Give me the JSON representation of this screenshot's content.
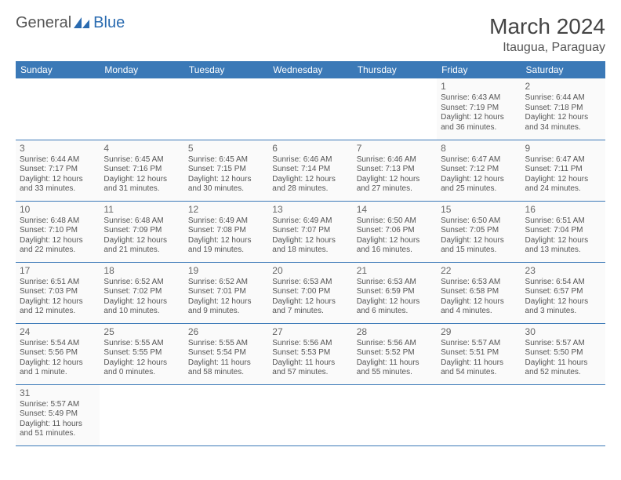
{
  "logo": {
    "text1": "General",
    "text2": "Blue"
  },
  "title": "March 2024",
  "location": "Itaugua, Paraguay",
  "colors": {
    "header_bg": "#3b79b7",
    "header_text": "#ffffff",
    "border": "#3b79b7",
    "logo_gray": "#555555",
    "logo_blue": "#2a6bb0"
  },
  "weekdays": [
    "Sunday",
    "Monday",
    "Tuesday",
    "Wednesday",
    "Thursday",
    "Friday",
    "Saturday"
  ],
  "first_weekday_index": 5,
  "days": [
    {
      "n": 1,
      "sunrise": "6:43 AM",
      "sunset": "7:19 PM",
      "daylight": "12 hours and 36 minutes."
    },
    {
      "n": 2,
      "sunrise": "6:44 AM",
      "sunset": "7:18 PM",
      "daylight": "12 hours and 34 minutes."
    },
    {
      "n": 3,
      "sunrise": "6:44 AM",
      "sunset": "7:17 PM",
      "daylight": "12 hours and 33 minutes."
    },
    {
      "n": 4,
      "sunrise": "6:45 AM",
      "sunset": "7:16 PM",
      "daylight": "12 hours and 31 minutes."
    },
    {
      "n": 5,
      "sunrise": "6:45 AM",
      "sunset": "7:15 PM",
      "daylight": "12 hours and 30 minutes."
    },
    {
      "n": 6,
      "sunrise": "6:46 AM",
      "sunset": "7:14 PM",
      "daylight": "12 hours and 28 minutes."
    },
    {
      "n": 7,
      "sunrise": "6:46 AM",
      "sunset": "7:13 PM",
      "daylight": "12 hours and 27 minutes."
    },
    {
      "n": 8,
      "sunrise": "6:47 AM",
      "sunset": "7:12 PM",
      "daylight": "12 hours and 25 minutes."
    },
    {
      "n": 9,
      "sunrise": "6:47 AM",
      "sunset": "7:11 PM",
      "daylight": "12 hours and 24 minutes."
    },
    {
      "n": 10,
      "sunrise": "6:48 AM",
      "sunset": "7:10 PM",
      "daylight": "12 hours and 22 minutes."
    },
    {
      "n": 11,
      "sunrise": "6:48 AM",
      "sunset": "7:09 PM",
      "daylight": "12 hours and 21 minutes."
    },
    {
      "n": 12,
      "sunrise": "6:49 AM",
      "sunset": "7:08 PM",
      "daylight": "12 hours and 19 minutes."
    },
    {
      "n": 13,
      "sunrise": "6:49 AM",
      "sunset": "7:07 PM",
      "daylight": "12 hours and 18 minutes."
    },
    {
      "n": 14,
      "sunrise": "6:50 AM",
      "sunset": "7:06 PM",
      "daylight": "12 hours and 16 minutes."
    },
    {
      "n": 15,
      "sunrise": "6:50 AM",
      "sunset": "7:05 PM",
      "daylight": "12 hours and 15 minutes."
    },
    {
      "n": 16,
      "sunrise": "6:51 AM",
      "sunset": "7:04 PM",
      "daylight": "12 hours and 13 minutes."
    },
    {
      "n": 17,
      "sunrise": "6:51 AM",
      "sunset": "7:03 PM",
      "daylight": "12 hours and 12 minutes."
    },
    {
      "n": 18,
      "sunrise": "6:52 AM",
      "sunset": "7:02 PM",
      "daylight": "12 hours and 10 minutes."
    },
    {
      "n": 19,
      "sunrise": "6:52 AM",
      "sunset": "7:01 PM",
      "daylight": "12 hours and 9 minutes."
    },
    {
      "n": 20,
      "sunrise": "6:53 AM",
      "sunset": "7:00 PM",
      "daylight": "12 hours and 7 minutes."
    },
    {
      "n": 21,
      "sunrise": "6:53 AM",
      "sunset": "6:59 PM",
      "daylight": "12 hours and 6 minutes."
    },
    {
      "n": 22,
      "sunrise": "6:53 AM",
      "sunset": "6:58 PM",
      "daylight": "12 hours and 4 minutes."
    },
    {
      "n": 23,
      "sunrise": "6:54 AM",
      "sunset": "6:57 PM",
      "daylight": "12 hours and 3 minutes."
    },
    {
      "n": 24,
      "sunrise": "5:54 AM",
      "sunset": "5:56 PM",
      "daylight": "12 hours and 1 minute."
    },
    {
      "n": 25,
      "sunrise": "5:55 AM",
      "sunset": "5:55 PM",
      "daylight": "12 hours and 0 minutes."
    },
    {
      "n": 26,
      "sunrise": "5:55 AM",
      "sunset": "5:54 PM",
      "daylight": "11 hours and 58 minutes."
    },
    {
      "n": 27,
      "sunrise": "5:56 AM",
      "sunset": "5:53 PM",
      "daylight": "11 hours and 57 minutes."
    },
    {
      "n": 28,
      "sunrise": "5:56 AM",
      "sunset": "5:52 PM",
      "daylight": "11 hours and 55 minutes."
    },
    {
      "n": 29,
      "sunrise": "5:57 AM",
      "sunset": "5:51 PM",
      "daylight": "11 hours and 54 minutes."
    },
    {
      "n": 30,
      "sunrise": "5:57 AM",
      "sunset": "5:50 PM",
      "daylight": "11 hours and 52 minutes."
    },
    {
      "n": 31,
      "sunrise": "5:57 AM",
      "sunset": "5:49 PM",
      "daylight": "11 hours and 51 minutes."
    }
  ],
  "labels": {
    "sunrise": "Sunrise:",
    "sunset": "Sunset:",
    "daylight": "Daylight:"
  }
}
